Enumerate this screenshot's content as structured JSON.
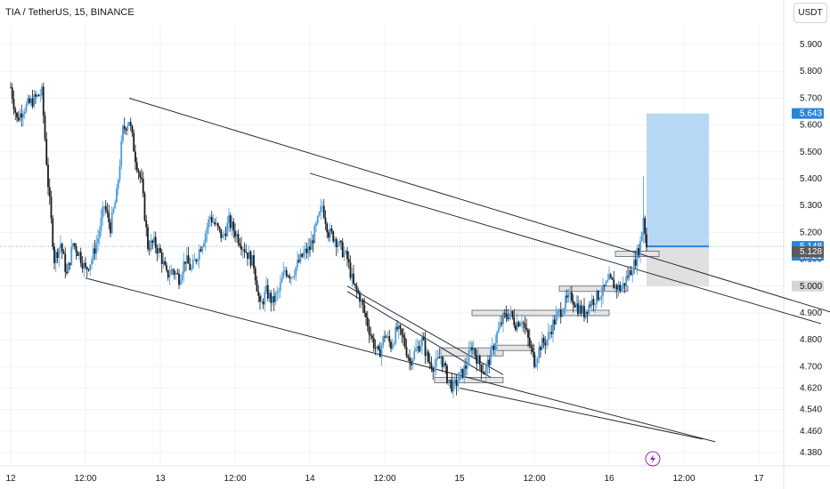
{
  "header": {
    "title": "TIA / TetherUS, 15, BINANCE",
    "currency_button": "USDT"
  },
  "colors": {
    "up": "#4a9bd9",
    "down": "#1b1b1b",
    "target": "#a9d1f3",
    "stop": "#d8d8d8",
    "accent": "#2a84d8"
  },
  "icons": {
    "bottom_marker": "lightning-icon"
  },
  "chart_data": {
    "type": "candlestick",
    "title": "TIA / TetherUS, 15, BINANCE",
    "xlabel": "",
    "ylabel": "",
    "ylim": [
      4.32,
      6.1
    ],
    "grid": true,
    "x_ticks": [
      {
        "t": 0,
        "label": "12"
      },
      {
        "t": 12,
        "label": "12:00"
      },
      {
        "t": 24,
        "label": "13"
      },
      {
        "t": 36,
        "label": "12:00"
      },
      {
        "t": 48,
        "label": "14"
      },
      {
        "t": 60,
        "label": "12:00"
      },
      {
        "t": 72,
        "label": "15"
      },
      {
        "t": 84,
        "label": "12:00"
      },
      {
        "t": 96,
        "label": "16"
      },
      {
        "t": 108,
        "label": "12:00"
      },
      {
        "t": 120,
        "label": "17"
      }
    ],
    "y_ticks": [
      4.38,
      4.46,
      4.54,
      4.62,
      4.7,
      4.8,
      4.9,
      5.0,
      5.1,
      5.2,
      5.3,
      5.4,
      5.5,
      5.6,
      5.7,
      5.8,
      5.9
    ],
    "price_path": [
      [
        0,
        5.74
      ],
      [
        1,
        5.62
      ],
      [
        2,
        5.66
      ],
      [
        3,
        5.68
      ],
      [
        5,
        5.72
      ],
      [
        6,
        5.38
      ],
      [
        7,
        5.1
      ],
      [
        8,
        5.16
      ],
      [
        9,
        5.04
      ],
      [
        10,
        5.16
      ],
      [
        11,
        5.12
      ],
      [
        12,
        5.06
      ],
      [
        13,
        5.1
      ],
      [
        14,
        5.18
      ],
      [
        15,
        5.3
      ],
      [
        16,
        5.22
      ],
      [
        17,
        5.34
      ],
      [
        18,
        5.58
      ],
      [
        19,
        5.62
      ],
      [
        20,
        5.48
      ],
      [
        21,
        5.38
      ],
      [
        22,
        5.15
      ],
      [
        23,
        5.16
      ],
      [
        24,
        5.12
      ],
      [
        25,
        5.04
      ],
      [
        26,
        5.06
      ],
      [
        27,
        5.03
      ],
      [
        28,
        5.1
      ],
      [
        29,
        5.06
      ],
      [
        30,
        5.12
      ],
      [
        31,
        5.18
      ],
      [
        32,
        5.26
      ],
      [
        33,
        5.22
      ],
      [
        34,
        5.18
      ],
      [
        35,
        5.24
      ],
      [
        36,
        5.2
      ],
      [
        37,
        5.16
      ],
      [
        38,
        5.12
      ],
      [
        39,
        5.08
      ],
      [
        40,
        4.92
      ],
      [
        41,
        4.98
      ],
      [
        42,
        4.94
      ],
      [
        43,
        4.98
      ],
      [
        44,
        5.06
      ],
      [
        45,
        5.04
      ],
      [
        46,
        5.08
      ],
      [
        47,
        5.12
      ],
      [
        48,
        5.14
      ],
      [
        49,
        5.22
      ],
      [
        50,
        5.3
      ],
      [
        51,
        5.2
      ],
      [
        52,
        5.18
      ],
      [
        53,
        5.14
      ],
      [
        54,
        5.1
      ],
      [
        55,
        5.0
      ],
      [
        56,
        4.96
      ],
      [
        57,
        4.88
      ],
      [
        58,
        4.8
      ],
      [
        59,
        4.74
      ],
      [
        60,
        4.82
      ],
      [
        61,
        4.78
      ],
      [
        62,
        4.84
      ],
      [
        63,
        4.8
      ],
      [
        64,
        4.72
      ],
      [
        65,
        4.76
      ],
      [
        66,
        4.8
      ],
      [
        67,
        4.72
      ],
      [
        68,
        4.7
      ],
      [
        69,
        4.74
      ],
      [
        70,
        4.66
      ],
      [
        71,
        4.62
      ],
      [
        72,
        4.66
      ],
      [
        73,
        4.7
      ],
      [
        74,
        4.78
      ],
      [
        75,
        4.72
      ],
      [
        76,
        4.68
      ],
      [
        77,
        4.74
      ],
      [
        78,
        4.82
      ],
      [
        79,
        4.88
      ],
      [
        80,
        4.9
      ],
      [
        81,
        4.86
      ],
      [
        82,
        4.88
      ],
      [
        83,
        4.8
      ],
      [
        84,
        4.72
      ],
      [
        85,
        4.78
      ],
      [
        86,
        4.8
      ],
      [
        87,
        4.86
      ],
      [
        88,
        4.9
      ],
      [
        89,
        4.94
      ],
      [
        90,
        4.96
      ],
      [
        91,
        4.92
      ],
      [
        92,
        4.9
      ],
      [
        93,
        4.94
      ],
      [
        94,
        4.96
      ],
      [
        95,
        4.98
      ],
      [
        96,
        5.02
      ],
      [
        97,
        5.0
      ],
      [
        98,
        4.99
      ],
      [
        99,
        5.04
      ],
      [
        100,
        5.08
      ],
      [
        101,
        5.16
      ],
      [
        101.5,
        5.26
      ],
      [
        102,
        5.148
      ]
    ],
    "highs": [
      [
        101.5,
        5.41
      ]
    ],
    "channel_lines": [
      {
        "name": "upper-channel",
        "from": [
          19,
          5.7
        ],
        "to": [
          132,
          4.9
        ]
      },
      {
        "name": "upper-parallel",
        "from": [
          48,
          5.42
        ],
        "to": [
          130,
          4.86
        ]
      },
      {
        "name": "lower-channel",
        "from": [
          12,
          5.03
        ],
        "to": [
          113,
          4.42
        ]
      },
      {
        "name": "lower-parallel",
        "from": [
          72,
          4.62
        ],
        "to": [
          111,
          4.43
        ]
      },
      {
        "name": "wedge-top",
        "from": [
          54,
          5.0
        ],
        "to": [
          79,
          4.67
        ]
      },
      {
        "name": "wedge-bottom",
        "from": [
          54,
          4.98
        ],
        "to": [
          77,
          4.66
        ]
      }
    ],
    "zones": [
      {
        "name": "order-block",
        "x1": 68,
        "x2": 79,
        "y1": 4.64,
        "y2": 4.66
      },
      {
        "name": "order-block",
        "x1": 69,
        "x2": 79,
        "y1": 4.74,
        "y2": 4.77
      },
      {
        "name": "order-block",
        "x1": 78,
        "x2": 84,
        "y1": 4.76,
        "y2": 4.78
      },
      {
        "name": "order-block",
        "x1": 74,
        "x2": 96,
        "y1": 4.89,
        "y2": 4.91
      },
      {
        "name": "order-block",
        "x1": 88,
        "x2": 99,
        "y1": 4.98,
        "y2": 5.0
      },
      {
        "name": "order-block",
        "x1": 97,
        "x2": 104,
        "y1": 5.11,
        "y2": 5.13
      }
    ],
    "position": {
      "entry": 5.148,
      "target": 5.643,
      "stop": 5.0,
      "x1": 102,
      "x2": 112
    },
    "price_tags": [
      {
        "value": "5.643",
        "kind": "target"
      },
      {
        "value": "5.148",
        "sub": "08:21",
        "kind": "last"
      },
      {
        "value": "5.128",
        "kind": "mark"
      },
      {
        "value": "5.000",
        "kind": "stop"
      }
    ]
  }
}
